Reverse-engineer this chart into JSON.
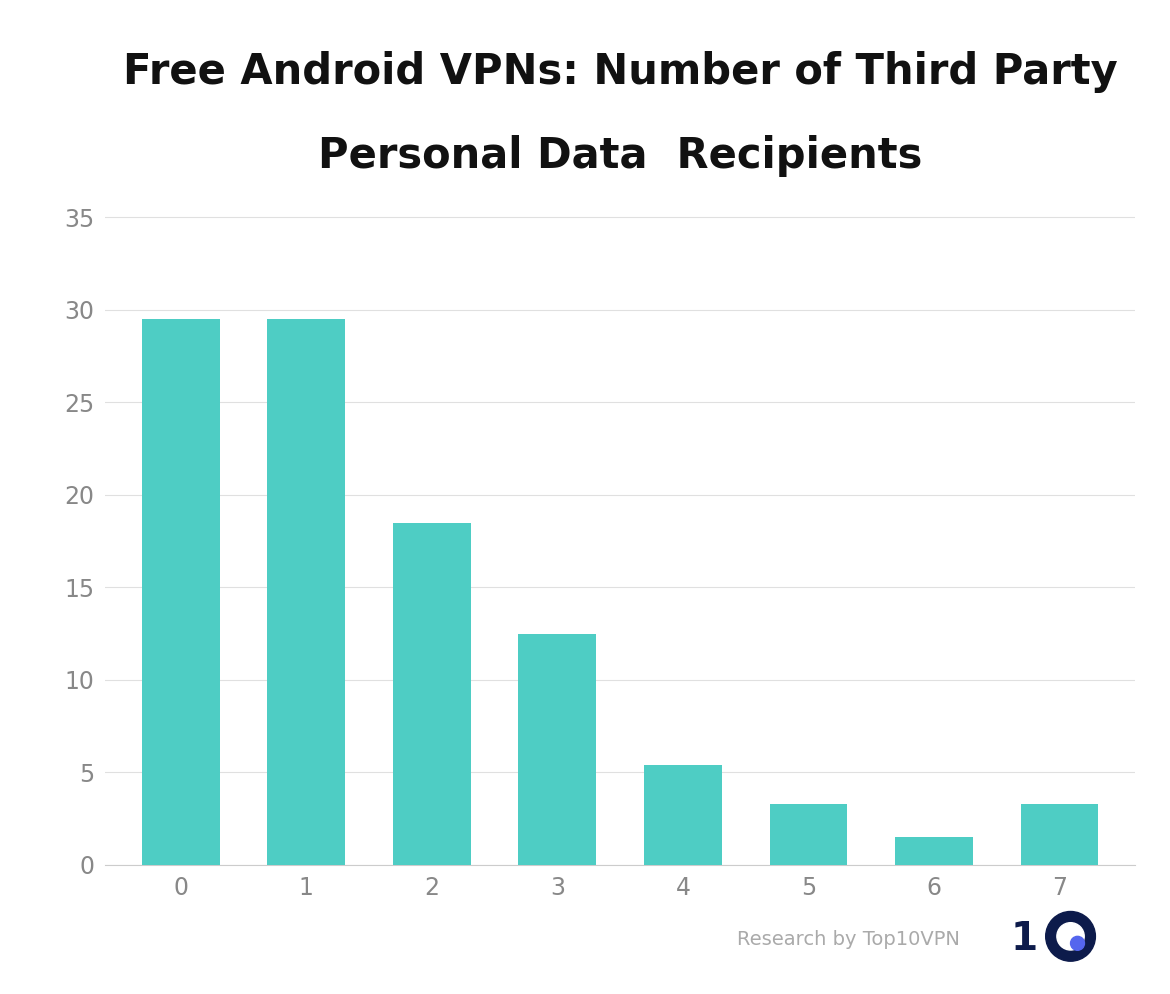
{
  "categories": [
    0,
    1,
    2,
    3,
    4,
    5,
    6,
    7
  ],
  "values": [
    29.5,
    29.5,
    18.5,
    12.5,
    5.4,
    3.3,
    1.5,
    3.3
  ],
  "bar_color": "#4ECDC4",
  "title_line1": "Free Android VPNs: Number of Third Party",
  "title_line2": "Personal Data  Recipients",
  "title_fontsize": 30,
  "title_fontweight": "bold",
  "title_color": "#111111",
  "ylim": [
    0,
    36
  ],
  "yticks": [
    0,
    5,
    10,
    15,
    20,
    25,
    30,
    35
  ],
  "xtick_fontsize": 17,
  "ytick_fontsize": 17,
  "background_color": "#ffffff",
  "grid_color": "#e0e0e0",
  "watermark_text": "Research by Top10VPN",
  "watermark_color": "#aaaaaa",
  "watermark_fontsize": 14,
  "logo_color": "#0d1b4b",
  "logo_dot_color": "#5566ee",
  "bar_width": 0.62
}
